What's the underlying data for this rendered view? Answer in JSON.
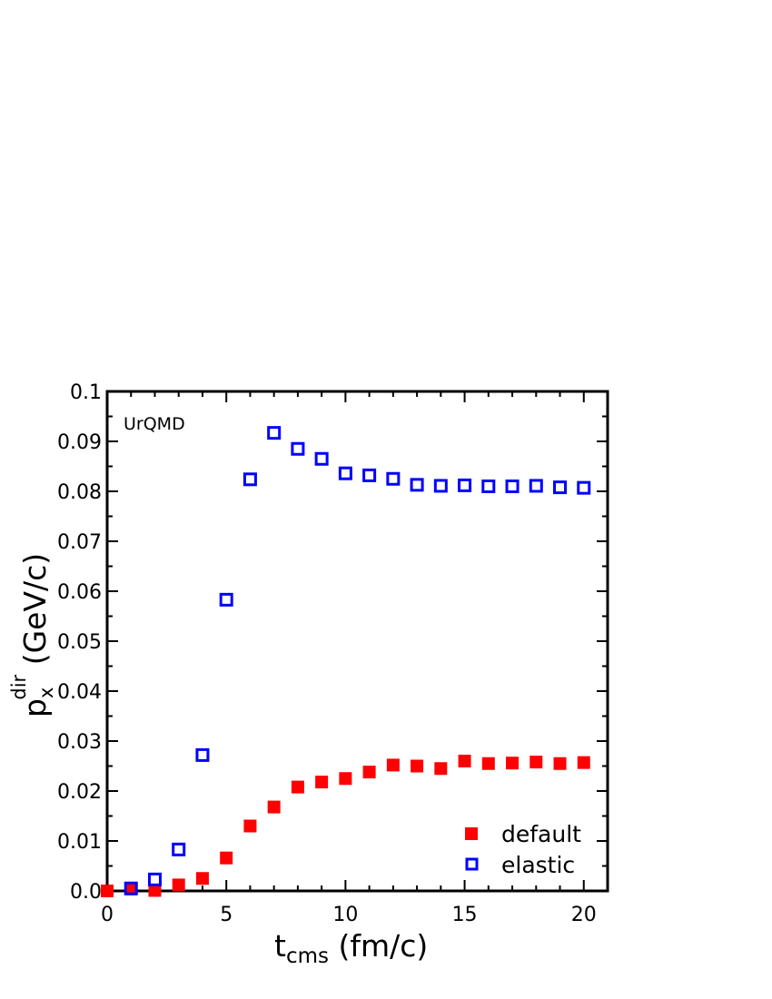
{
  "chart_data": {
    "type": "scatter",
    "xlabel": {
      "main": "t",
      "sub": "cms",
      "rest": " (fm/c)"
    },
    "ylabel": {
      "main": "p",
      "sub": "x",
      "sup": "dir",
      "rest": " (GeV/c)"
    },
    "xlim": [
      0,
      21
    ],
    "ylim": [
      0.0,
      0.1
    ],
    "x_ticks": [
      0,
      5,
      10,
      15,
      20
    ],
    "y_ticks": [
      0.0,
      0.01,
      0.02,
      0.03,
      0.04,
      0.05,
      0.06,
      0.07,
      0.08,
      0.09,
      0.1
    ],
    "x_tick_labels": [
      "0",
      "5",
      "10",
      "15",
      "20"
    ],
    "y_tick_labels": [
      "0.0",
      "0.01",
      "0.02",
      "0.03",
      "0.04",
      "0.05",
      "0.06",
      "0.07",
      "0.08",
      "0.09",
      "0.1"
    ],
    "annotation": "UrQMD",
    "grid": false,
    "legend_position": "bottom-right",
    "series": [
      {
        "name": "default",
        "marker": "filled-square",
        "color": "#ff0000",
        "x": [
          0,
          1,
          2,
          3,
          4,
          5,
          6,
          7,
          8,
          9,
          10,
          11,
          12,
          13,
          14,
          15,
          16,
          17,
          18,
          19,
          20
        ],
        "y": [
          0.0,
          0.0004,
          0.0001,
          0.0012,
          0.0025,
          0.0066,
          0.013,
          0.0168,
          0.0208,
          0.0218,
          0.0225,
          0.0238,
          0.0252,
          0.025,
          0.0245,
          0.026,
          0.0255,
          0.0256,
          0.0258,
          0.0255,
          0.0257
        ]
      },
      {
        "name": "elastic",
        "marker": "open-square",
        "color": "#0000ff",
        "x": [
          1,
          2,
          3,
          4,
          5,
          6,
          7,
          8,
          9,
          10,
          11,
          12,
          13,
          14,
          15,
          16,
          17,
          18,
          19,
          20
        ],
        "y": [
          0.0005,
          0.0023,
          0.0083,
          0.0272,
          0.0583,
          0.0824,
          0.0917,
          0.0885,
          0.0865,
          0.0836,
          0.0832,
          0.0825,
          0.0813,
          0.0811,
          0.0812,
          0.081,
          0.081,
          0.0811,
          0.0808,
          0.0807
        ]
      }
    ]
  }
}
